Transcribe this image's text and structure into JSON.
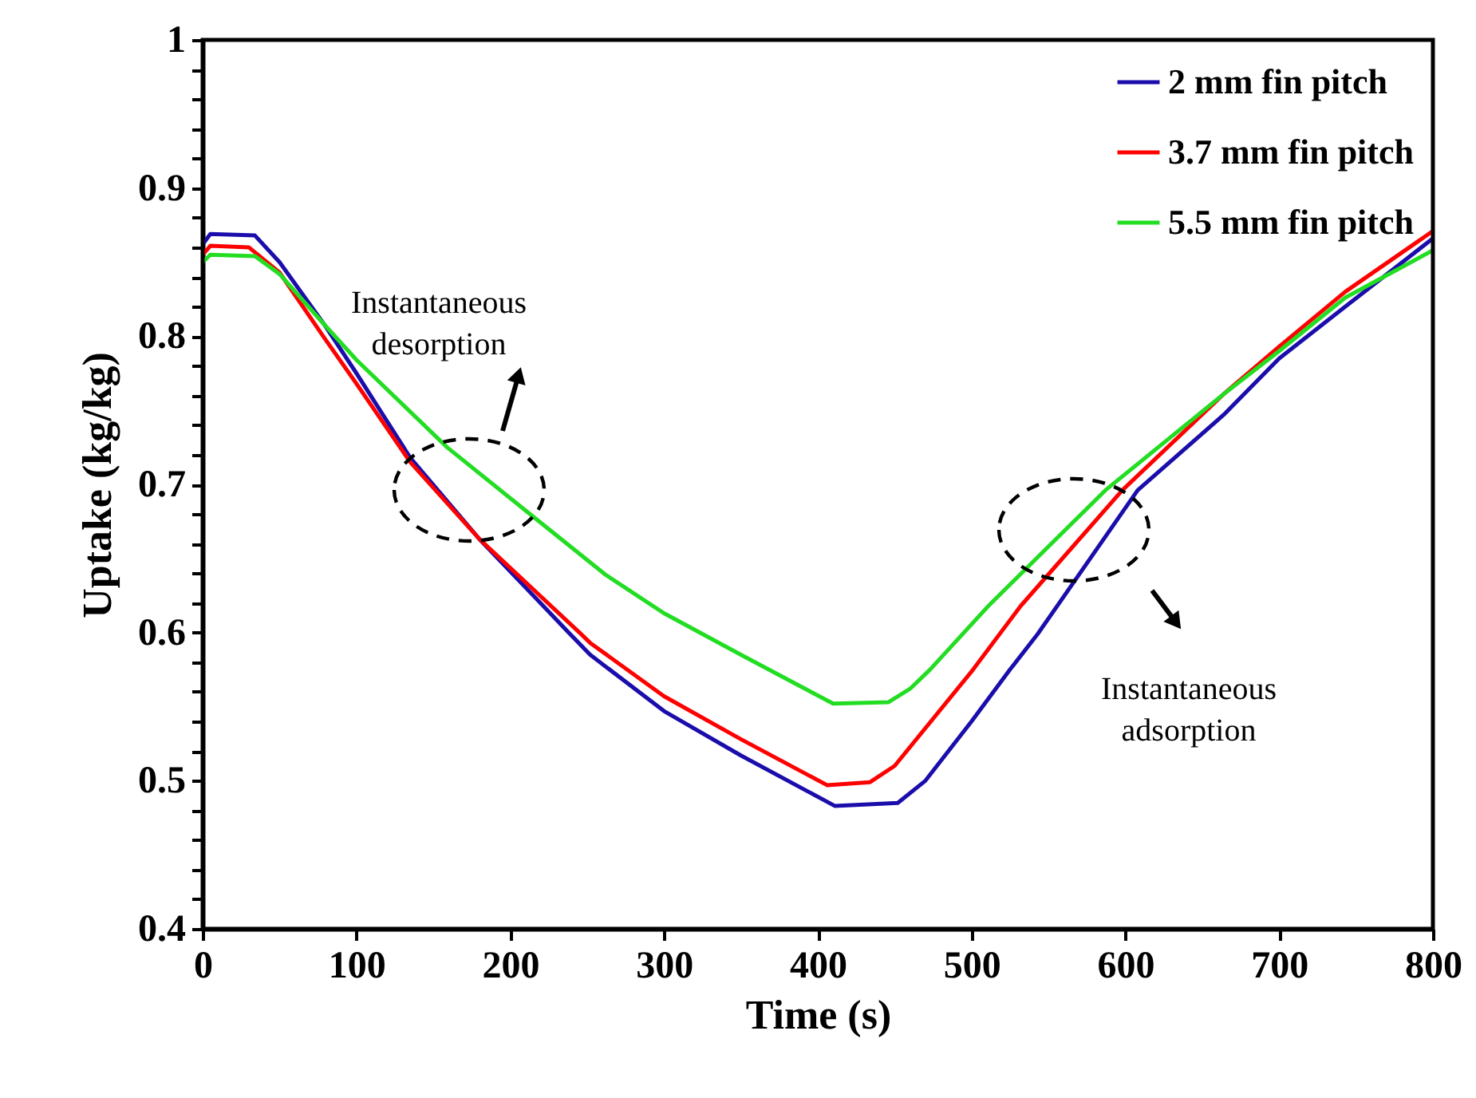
{
  "chart_data": {
    "type": "line",
    "xlabel": "Time (s)",
    "ylabel": "Uptake (kg/kg)",
    "xlim": [
      0,
      800
    ],
    "xticks": [
      0,
      100,
      200,
      300,
      400,
      500,
      600,
      700,
      800
    ],
    "ylim": [
      0.4,
      1
    ],
    "yticks": [
      0.4,
      {
        "value": 0.42,
        "label": null
      },
      {
        "value": 0.44,
        "label": null
      },
      {
        "value": 0.46,
        "label": null
      },
      {
        "value": 0.48,
        "label": null
      },
      0.5,
      {
        "value": 0.52,
        "label": null
      },
      {
        "value": 0.54,
        "label": null
      },
      {
        "value": 0.56,
        "label": null
      },
      {
        "value": 0.58,
        "label": null
      },
      0.6,
      {
        "value": 0.62,
        "label": null
      },
      {
        "value": 0.64,
        "label": null
      },
      {
        "value": 0.66,
        "label": null
      },
      {
        "value": 0.68,
        "label": null
      },
      0.7,
      {
        "value": 0.72,
        "label": null
      },
      {
        "value": 0.74,
        "label": null
      },
      {
        "value": 0.76,
        "label": null
      },
      {
        "value": 0.78,
        "label": null
      },
      0.8,
      {
        "value": 0.82,
        "label": null
      },
      {
        "value": 0.84,
        "label": null
      },
      {
        "value": 0.86,
        "label": null
      },
      {
        "value": 0.88,
        "label": null
      },
      0.9,
      {
        "value": 0.92,
        "label": null
      },
      {
        "value": 0.94,
        "label": null
      },
      {
        "value": 0.96,
        "label": null
      },
      {
        "value": 0.98,
        "label": null
      },
      1
    ],
    "grid": false,
    "legend": "top right",
    "marker": "none",
    "line_style": "solid",
    "series": [
      {
        "name": "2 mm fin pitch",
        "color": "#1a0dab",
        "x": [
          0,
          5,
          34,
          50,
          79,
          100,
          135,
          180,
          238,
          252,
          300,
          350,
          411,
          452,
          470,
          500,
          525,
          543,
          608,
          664,
          700,
          743,
          800
        ],
        "values": [
          0.862,
          0.869,
          0.868,
          0.85,
          0.808,
          0.775,
          0.718,
          0.663,
          0.6,
          0.585,
          0.547,
          0.517,
          0.483,
          0.485,
          0.5,
          0.54,
          0.575,
          0.599,
          0.696,
          0.747,
          0.785,
          0.82,
          0.866
        ]
      },
      {
        "name": "3.7 mm fin pitch",
        "color": "#ff0000",
        "x": [
          0,
          5,
          30,
          50,
          79,
          100,
          135,
          180,
          245,
          252,
          300,
          350,
          406,
          434,
          450,
          501,
          532,
          598,
          664,
          700,
          743,
          800
        ],
        "values": [
          0.855,
          0.861,
          0.86,
          0.843,
          0.799,
          0.768,
          0.715,
          0.663,
          0.6,
          0.593,
          0.557,
          0.528,
          0.497,
          0.499,
          0.51,
          0.575,
          0.618,
          0.696,
          0.761,
          0.793,
          0.83,
          0.871
        ]
      },
      {
        "name": "5.5 mm fin pitch",
        "color": "#22dd22",
        "x": [
          0,
          5,
          34,
          50,
          79,
          100,
          159,
          214,
          262,
          300,
          350,
          410,
          446,
          460,
          473,
          511,
          587,
          664,
          700,
          743,
          800
        ],
        "values": [
          0.85,
          0.855,
          0.854,
          0.842,
          0.808,
          0.784,
          0.725,
          0.679,
          0.639,
          0.613,
          0.585,
          0.552,
          0.553,
          0.562,
          0.575,
          0.618,
          0.696,
          0.761,
          0.79,
          0.826,
          0.858
        ]
      }
    ],
    "annotations": [
      "Instantaneous\ndesorption",
      "Instantaneous\nadsorption"
    ]
  }
}
